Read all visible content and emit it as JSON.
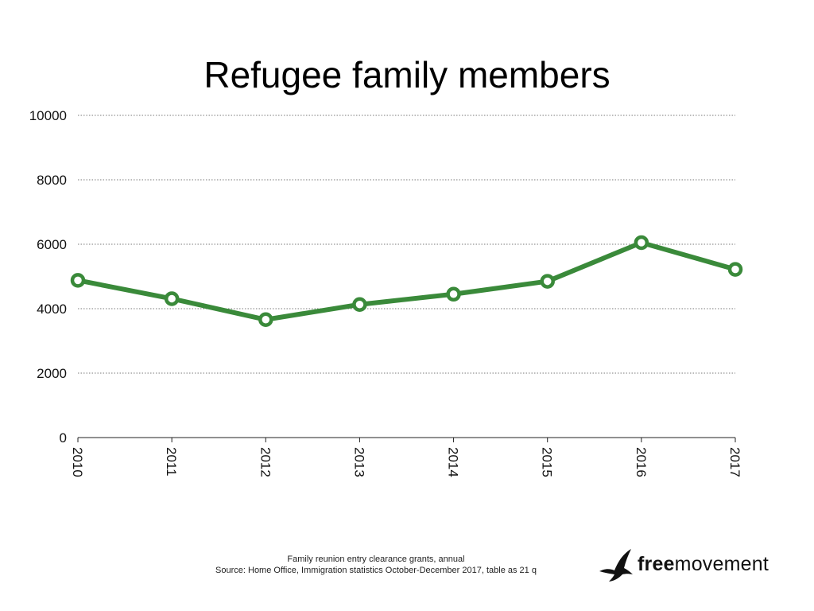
{
  "chart_data": {
    "type": "line",
    "title": "Refugee family members",
    "xlabel": "",
    "ylabel": "",
    "categories": [
      "2010",
      "2011",
      "2012",
      "2013",
      "2014",
      "2015",
      "2016",
      "2017"
    ],
    "series": [
      {
        "values": [
          4880,
          4310,
          3660,
          4130,
          4450,
          4850,
          6050,
          5220
        ]
      }
    ],
    "ylim": [
      0,
      10000
    ],
    "yticks": [
      0,
      2000,
      4000,
      6000,
      8000,
      10000
    ],
    "grid": "horizontal-dotted",
    "legend": "none",
    "x_tick_rotation": "vertical",
    "line_color": "#3a8a3a"
  },
  "footer": {
    "line1": "Family reunion entry clearance grants, annual",
    "line2": "Source: Home Office, Immigration statistics October-December 2017, table as 21 q"
  },
  "logo": {
    "icon": "bird-icon",
    "text_bold": "free",
    "text_regular": "movement"
  }
}
